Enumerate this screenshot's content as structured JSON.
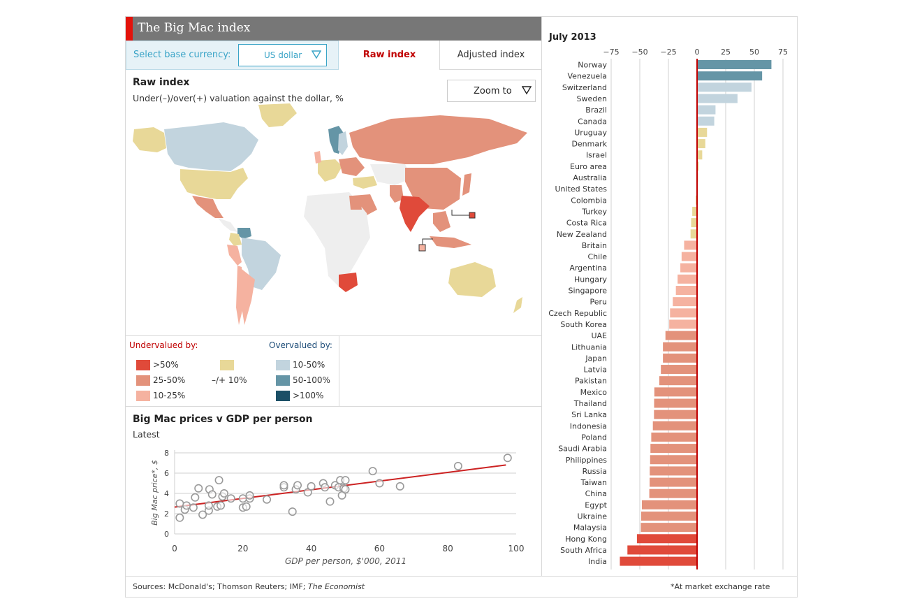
{
  "header": {
    "title": "The Big Mac index"
  },
  "controls": {
    "base_label": "Select base currency:",
    "currency": "US dollar",
    "tabs": [
      "Raw index",
      "Adjusted index"
    ],
    "active_tab": "Raw index",
    "zoom_label": "Zoom to"
  },
  "map": {
    "title": "Raw index",
    "subtitle": "Under(–)/over(+) valuation against the dollar, %"
  },
  "legend": {
    "undervalued_title": "Undervalued by:",
    "overvalued_title": "Overvalued by:",
    "items": [
      {
        "label": ">50%",
        "color": "#e04a3a"
      },
      {
        "label": "25-50%",
        "color": "#e3927b"
      },
      {
        "label": "10-25%",
        "color": "#f5b2a0"
      },
      {
        "label": "–/+ 10%",
        "color": "#e8d898"
      },
      {
        "label": "10-50%",
        "color": "#c2d4de"
      },
      {
        "label": "50-100%",
        "color": "#6595a6"
      },
      {
        "label": ">100%",
        "color": "#1b4f66"
      }
    ]
  },
  "scatter": {
    "title": "Big Mac prices v GDP per person",
    "subtitle": "Latest"
  },
  "footer": {
    "source_prefix": "Sources: McDonald's; Thomson Reuters; IMF; ",
    "source_italic": "The Economist",
    "note": "*At market exchange rate"
  },
  "colors": {
    "accent": "#e3120b",
    "title_bar": "#777777",
    "undervalued_head": "#c00000",
    "overvalued_head": "#1f4e79",
    "zero_line": "#c00000",
    "trend_line": "#cc2222"
  },
  "chart_data": [
    {
      "type": "bar",
      "orientation": "horizontal",
      "title": "July 2013",
      "xlim": [
        -75,
        75
      ],
      "xticks": [
        -75,
        -50,
        -25,
        0,
        25,
        50,
        75
      ],
      "xtick_labels": [
        "−75",
        "−50",
        "−25",
        "0",
        "25",
        "50",
        "75"
      ],
      "grid": true,
      "categories": [
        "Norway",
        "Venezuela",
        "Switzerland",
        "Sweden",
        "Brazil",
        "Canada",
        "Uruguay",
        "Denmark",
        "Israel",
        "Euro area",
        "Australia",
        "United States",
        "Colombia",
        "Turkey",
        "Costa Rica",
        "New Zealand",
        "Britain",
        "Chile",
        "Argentina",
        "Hungary",
        "Singapore",
        "Peru",
        "Czech Republic",
        "South Korea",
        "UAE",
        "Lithuania",
        "Japan",
        "Latvia",
        "Pakistan",
        "Mexico",
        "Thailand",
        "Sri Lanka",
        "Indonesia",
        "Poland",
        "Saudi Arabia",
        "Philippines",
        "Russia",
        "Taiwan",
        "China",
        "Egypt",
        "Ukraine",
        "Malaysia",
        "Hong Kong",
        "South Africa",
        "India"
      ],
      "values": [
        64.9,
        56.8,
        47.5,
        35.3,
        16.1,
        15.0,
        8.7,
        7.2,
        4.5,
        1.4,
        0.9,
        0,
        -1.2,
        -4.2,
        -5.2,
        -5.7,
        -11.3,
        -13.5,
        -14.6,
        -17.0,
        -18.5,
        -21.2,
        -23.6,
        -24.3,
        -27.6,
        -29.8,
        -29.8,
        -31.6,
        -33.0,
        -37.3,
        -37.5,
        -37.6,
        -38.6,
        -40.0,
        -40.7,
        -41.0,
        -41.3,
        -41.4,
        -41.7,
        -48.2,
        -48.8,
        -49.1,
        -52.5,
        -60.8,
        -67.4
      ],
      "colors": [
        "#6595a6",
        "#6595a6",
        "#c2d4de",
        "#c2d4de",
        "#c2d4de",
        "#c2d4de",
        "#e8d898",
        "#e8d898",
        "#e8d898",
        "#e8d898",
        "#e8d898",
        "#e8d898",
        "#e8d898",
        "#e8d898",
        "#e8d898",
        "#e8d898",
        "#f5b2a0",
        "#f5b2a0",
        "#f5b2a0",
        "#f5b2a0",
        "#f5b2a0",
        "#f5b2a0",
        "#f5b2a0",
        "#f5b2a0",
        "#e3927b",
        "#e3927b",
        "#e3927b",
        "#e3927b",
        "#e3927b",
        "#e3927b",
        "#e3927b",
        "#e3927b",
        "#e3927b",
        "#e3927b",
        "#e3927b",
        "#e3927b",
        "#e3927b",
        "#e3927b",
        "#e3927b",
        "#e3927b",
        "#e3927b",
        "#e3927b",
        "#e04a3a",
        "#e04a3a",
        "#e04a3a"
      ]
    },
    {
      "type": "scatter",
      "xlabel": "GDP per person, $'000, 2011",
      "ylabel": "Big Mac price*, $",
      "xlim": [
        0,
        100
      ],
      "ylim": [
        0,
        8
      ],
      "xticks": [
        0,
        20,
        40,
        60,
        80,
        100
      ],
      "yticks": [
        0,
        2,
        4,
        6,
        8
      ],
      "grid": true,
      "trend": {
        "x": [
          0,
          97
        ],
        "y": [
          2.65,
          6.8
        ]
      },
      "points": [
        [
          1.5,
          1.6
        ],
        [
          1.5,
          3.0
        ],
        [
          3,
          2.4
        ],
        [
          3.5,
          2.8
        ],
        [
          5.5,
          2.6
        ],
        [
          6,
          3.6
        ],
        [
          7,
          4.5
        ],
        [
          8.2,
          1.9
        ],
        [
          10,
          2.3
        ],
        [
          10,
          2.8
        ],
        [
          10.2,
          4.4
        ],
        [
          11,
          3.9
        ],
        [
          12.5,
          2.7
        ],
        [
          13,
          5.3
        ],
        [
          13.5,
          2.8
        ],
        [
          14,
          3.7
        ],
        [
          14.5,
          4.0
        ],
        [
          16.5,
          3.5
        ],
        [
          20,
          2.6
        ],
        [
          20,
          3.5
        ],
        [
          21,
          2.7
        ],
        [
          22,
          3.5
        ],
        [
          22,
          3.8
        ],
        [
          27,
          3.4
        ],
        [
          32,
          4.6
        ],
        [
          32,
          4.8
        ],
        [
          34.5,
          2.2
        ],
        [
          35.5,
          4.4
        ],
        [
          36,
          4.8
        ],
        [
          39,
          4.1
        ],
        [
          40,
          4.7
        ],
        [
          43.5,
          5.0
        ],
        [
          44,
          4.6
        ],
        [
          45.5,
          3.2
        ],
        [
          47,
          4.8
        ],
        [
          48,
          4.6
        ],
        [
          48.5,
          5.3
        ],
        [
          49,
          3.8
        ],
        [
          49.5,
          4.5
        ],
        [
          50,
          4.4
        ],
        [
          50,
          5.3
        ],
        [
          58,
          6.2
        ],
        [
          60,
          5.0
        ],
        [
          66,
          4.7
        ],
        [
          83,
          6.7
        ],
        [
          97.5,
          7.5
        ]
      ]
    }
  ]
}
